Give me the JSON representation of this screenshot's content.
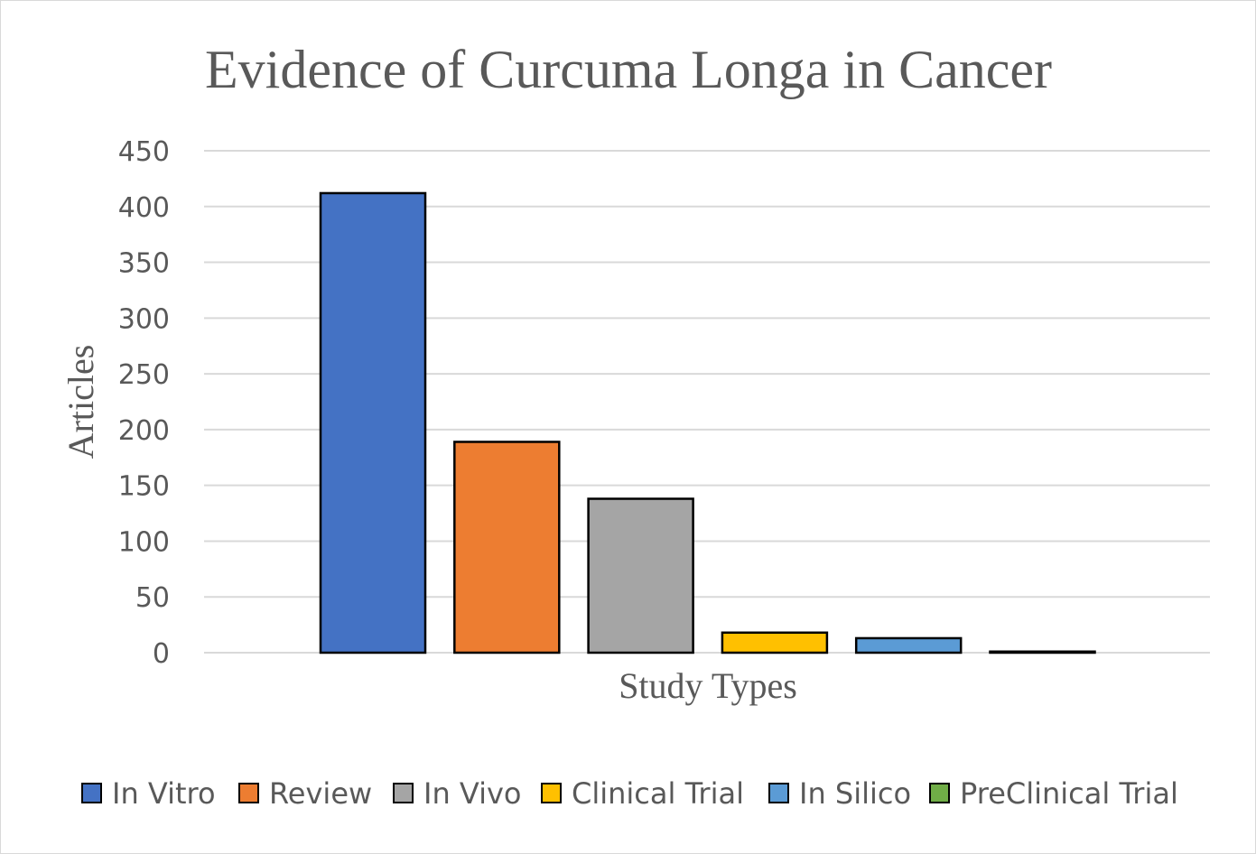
{
  "chart_data": {
    "type": "bar",
    "title": "Evidence of Curcuma Longa in Cancer",
    "xlabel": "Study Types",
    "ylabel": "Articles",
    "ylim": [
      0,
      450
    ],
    "yticks": [
      0,
      50,
      100,
      150,
      200,
      250,
      300,
      350,
      400,
      450
    ],
    "grid": true,
    "legend_position": "bottom",
    "series": [
      {
        "name": "In Vitro",
        "value": 412,
        "color": "#4472C4"
      },
      {
        "name": "Review",
        "value": 189,
        "color": "#ED7D31"
      },
      {
        "name": "In Vivo",
        "value": 138,
        "color": "#A5A5A5"
      },
      {
        "name": "Clinical Trial",
        "value": 18,
        "color": "#FFC000"
      },
      {
        "name": "In Silico",
        "value": 13,
        "color": "#5B9BD5"
      },
      {
        "name": "PreClinical Trial",
        "value": 1,
        "color": "#70AD47"
      }
    ]
  }
}
